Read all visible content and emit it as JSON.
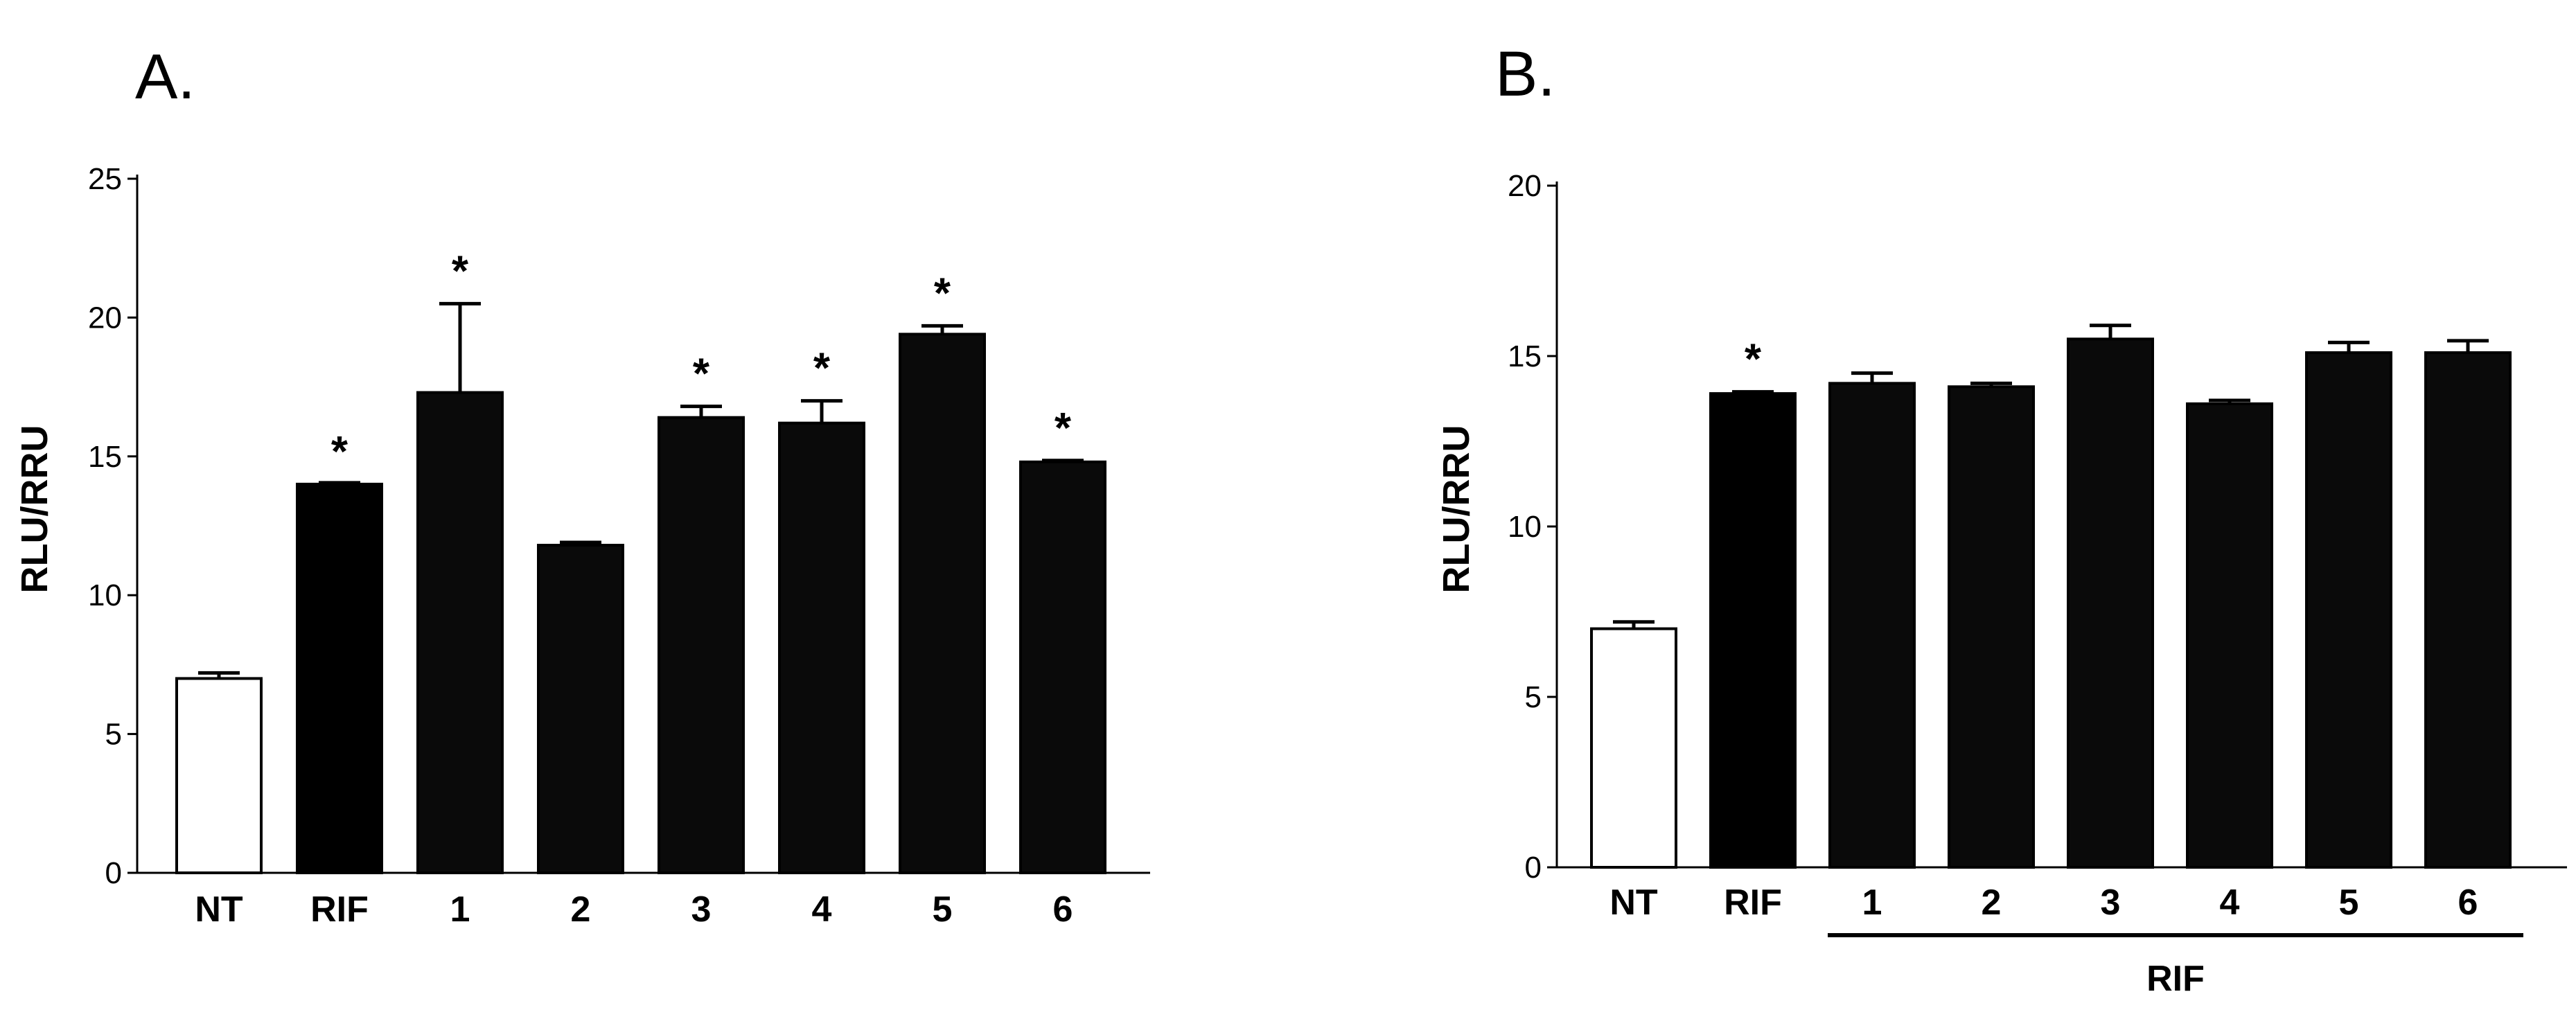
{
  "chart_data": [
    {
      "type": "bar",
      "panel_label": "A.",
      "ylabel": "RLU/RRU",
      "ylim": [
        0,
        25
      ],
      "yticks": [
        "0",
        "5",
        "10",
        "15",
        "20",
        "25"
      ],
      "categories": [
        "NT",
        "RIF",
        "1",
        "2",
        "3",
        "4",
        "5",
        "6"
      ],
      "values": [
        7.0,
        14.0,
        17.3,
        11.8,
        16.4,
        16.2,
        19.4,
        14.8
      ],
      "errors": [
        0.2,
        0.0,
        3.2,
        0.1,
        0.4,
        0.8,
        0.3,
        0.05
      ],
      "significance": [
        "",
        "*",
        "*",
        "",
        "*",
        "*",
        "*",
        "*"
      ],
      "fills": [
        "#ffffff",
        "#000000",
        "#0a0a0a",
        "#0a0a0a",
        "#0a0a0a",
        "#0a0a0a",
        "#0a0a0a",
        "#0a0a0a"
      ],
      "group_label": ""
    },
    {
      "type": "bar",
      "panel_label": "B.",
      "ylabel": "RLU/RRU",
      "ylim": [
        0,
        20
      ],
      "yticks": [
        "0",
        "5",
        "10",
        "15",
        "20"
      ],
      "categories": [
        "NT",
        "RIF",
        "1",
        "2",
        "3",
        "4",
        "5",
        "6"
      ],
      "values": [
        7.0,
        13.9,
        14.2,
        14.1,
        15.5,
        13.6,
        15.1,
        15.1
      ],
      "errors": [
        0.2,
        0.05,
        0.3,
        0.1,
        0.4,
        0.1,
        0.3,
        0.35
      ],
      "significance": [
        "",
        "*",
        "",
        "",
        "",
        "",
        "",
        ""
      ],
      "fills": [
        "#ffffff",
        "#000000",
        "#0a0a0a",
        "#0a0a0a",
        "#0a0a0a",
        "#0a0a0a",
        "#0a0a0a",
        "#0a0a0a"
      ],
      "group_label": "RIF"
    }
  ]
}
